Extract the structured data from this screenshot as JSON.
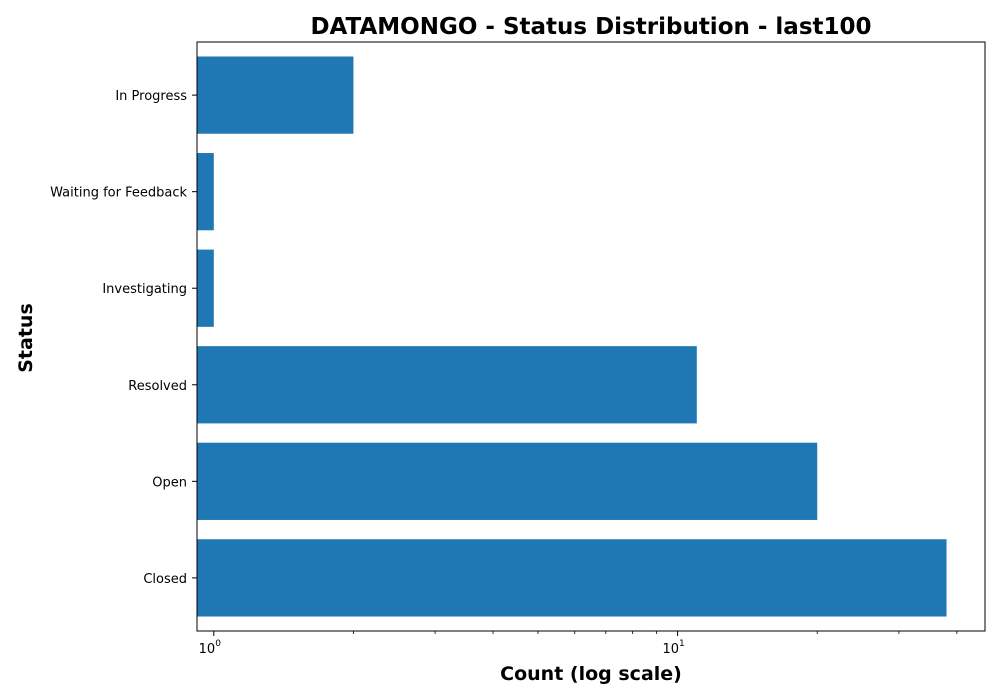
{
  "chart_data": {
    "type": "bar",
    "orientation": "horizontal",
    "title": "DATAMONGO - Status Distribution - last100",
    "xlabel": "Count (log scale)",
    "ylabel": "Status",
    "x_scale": "log",
    "xlim": [
      0.92,
      46
    ],
    "categories": [
      "Closed",
      "Open",
      "Resolved",
      "Investigating",
      "Waiting for Feedback",
      "In Progress"
    ],
    "values": [
      38,
      20,
      11,
      1,
      1,
      2
    ],
    "x_ticks": [
      {
        "base": "10",
        "exp": "0",
        "value": 1
      },
      {
        "base": "10",
        "exp": "1",
        "value": 10
      }
    ],
    "bar_color": "#1f77b4",
    "grid": false,
    "legend": "none"
  }
}
